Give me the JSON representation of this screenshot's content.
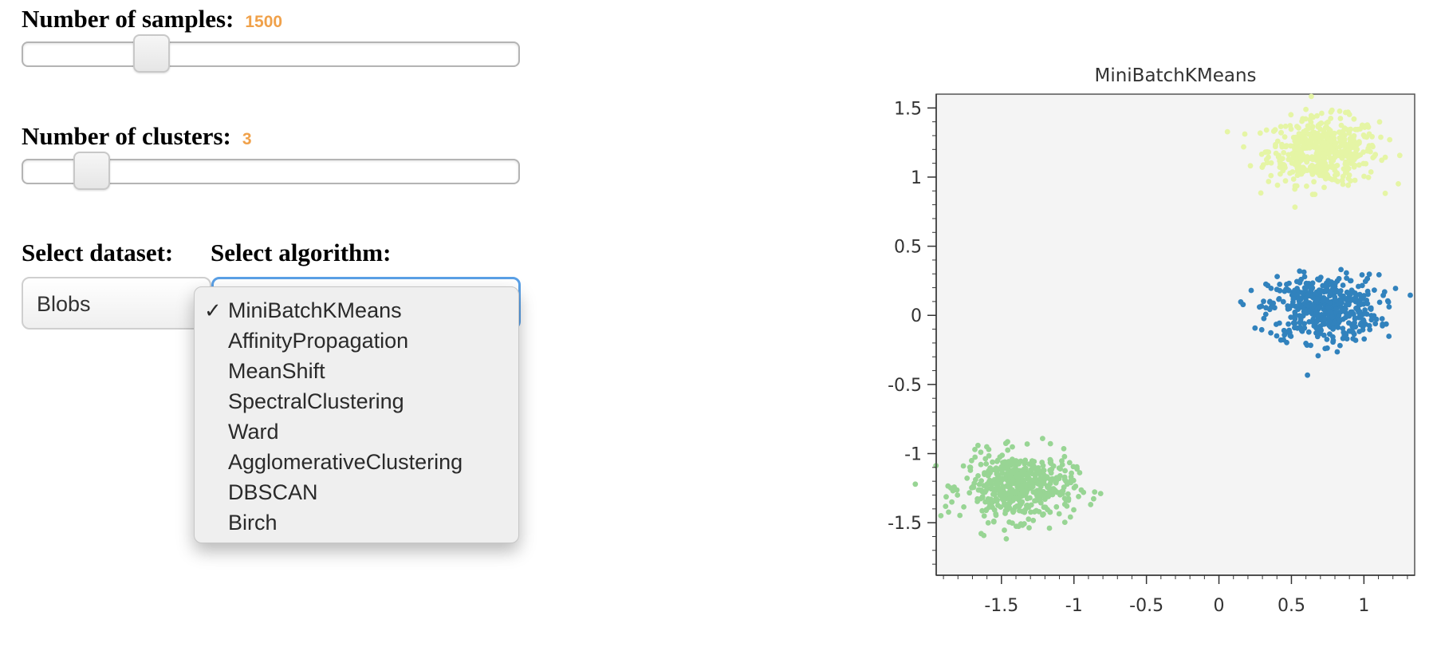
{
  "samples": {
    "label": "Number of samples:",
    "value": "1500",
    "fraction": 0.24
  },
  "clusters": {
    "label": "Number of clusters:",
    "value": "3",
    "fraction": 0.11
  },
  "dataset": {
    "label": "Select dataset:",
    "selected": "Blobs"
  },
  "algorithm": {
    "label": "Select algorithm:",
    "selected": "MiniBatchKMeans",
    "options": [
      "MiniBatchKMeans",
      "AffinityPropagation",
      "MeanShift",
      "SpectralClustering",
      "Ward",
      "AgglomerativeClustering",
      "DBSCAN",
      "Birch"
    ],
    "checkmark": "✓"
  },
  "colors": {
    "accent": "#f0a14a",
    "cluster_blue": "#3182bd",
    "cluster_yellow": "#e5f5a5",
    "cluster_green": "#98d594",
    "plot_bg": "#f4f4f4"
  },
  "chart_data": {
    "type": "scatter",
    "title": "MiniBatchKMeans",
    "xlim": [
      -1.95,
      1.35
    ],
    "ylim": [
      -1.88,
      1.6
    ],
    "xticks": [
      -1.5,
      -1,
      -0.5,
      0,
      0.5,
      1
    ],
    "xtick_labels": [
      "-1.5",
      "-1",
      "-0.5",
      "0",
      "0.5",
      "1"
    ],
    "yticks": [
      1.5,
      1,
      0.5,
      0,
      -0.5,
      -1,
      -1.5
    ],
    "ytick_labels": [
      "1.5",
      "1",
      "0.5",
      "0",
      "-0.5",
      "-1",
      "-1.5"
    ],
    "series": [
      {
        "color": "#e5f5a5",
        "center": [
          0.72,
          1.19
        ],
        "spread": [
          0.19,
          0.12
        ],
        "count": 500
      },
      {
        "color": "#3182bd",
        "center": [
          0.72,
          0.05
        ],
        "spread": [
          0.19,
          0.12
        ],
        "count": 500
      },
      {
        "color": "#98d594",
        "center": [
          -1.38,
          -1.24
        ],
        "spread": [
          0.19,
          0.12
        ],
        "count": 500
      }
    ]
  }
}
